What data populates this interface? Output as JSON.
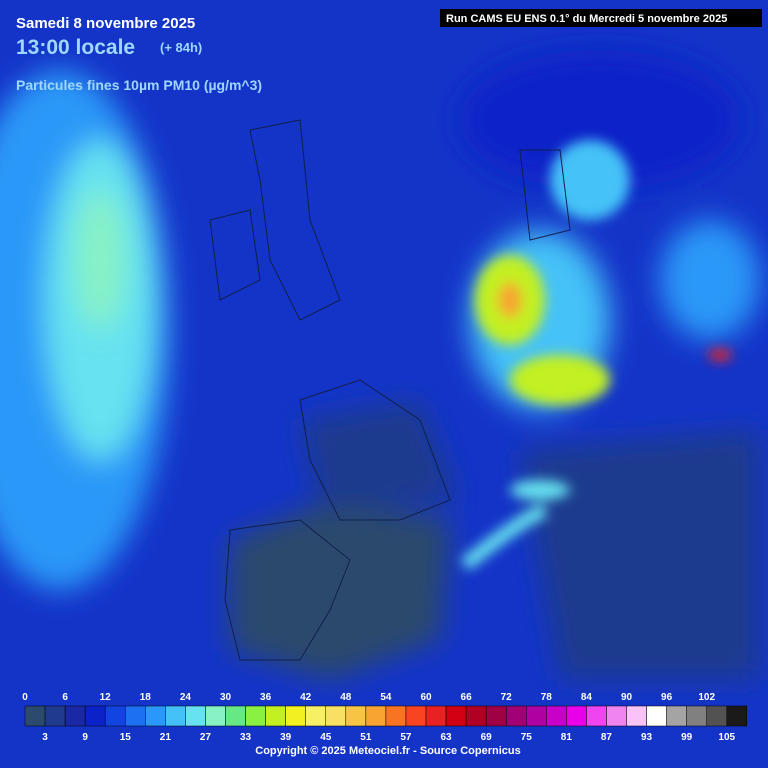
{
  "header": {
    "date": "Samedi 8 novembre 2025",
    "time": "13:00 locale",
    "lead": "(+ 84h)",
    "variable": "Particules fines 10µm PM10 (µg/m^3)",
    "run": "Run CAMS EU ENS 0.1° du Mercredi 5 novembre 2025"
  },
  "legend": {
    "labels": [
      0,
      3,
      6,
      9,
      12,
      15,
      18,
      21,
      24,
      27,
      30,
      33,
      36,
      39,
      42,
      45,
      48,
      51,
      54,
      57,
      60,
      63,
      66,
      69,
      72,
      75,
      78,
      81,
      84,
      87,
      90,
      93,
      96,
      99,
      102,
      105
    ],
    "colors": [
      "#2b4a6c",
      "#1f3a8e",
      "#1a28a6",
      "#0a22c8",
      "#1244e2",
      "#1e70f2",
      "#2a98f8",
      "#44c2f8",
      "#66e2f0",
      "#88f2c4",
      "#66e884",
      "#8af042",
      "#c2f020",
      "#f2f020",
      "#f8f064",
      "#f8e064",
      "#f8c444",
      "#f8a432",
      "#f87422",
      "#f84420",
      "#e82222",
      "#d00012",
      "#b00024",
      "#a00044",
      "#a00074",
      "#b000a2",
      "#c800c8",
      "#e800e8",
      "#f044f0",
      "#f084f0",
      "#f8c4f8",
      "#ffffff",
      "#a4a4a4",
      "#808080",
      "#525252",
      "#1a1a1a"
    ]
  },
  "footer": {
    "copyright": "Copyright © 2025 Meteociel.fr - Source Copernicus"
  }
}
